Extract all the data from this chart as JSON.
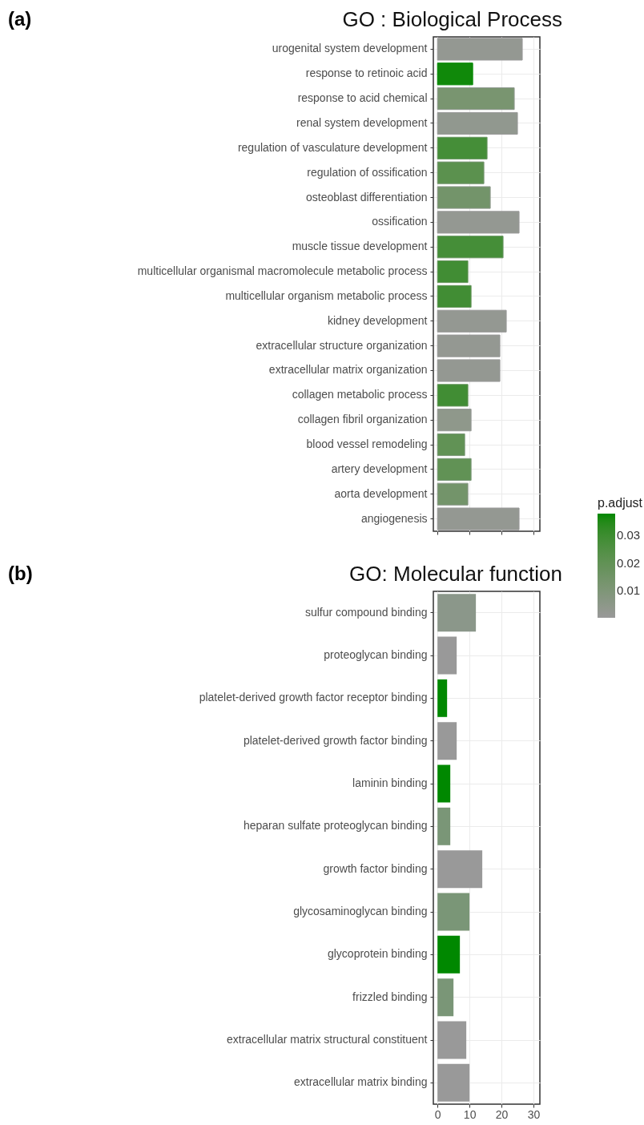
{
  "chart_data": [
    {
      "type": "bar",
      "orientation": "horizontal",
      "title": "GO : Biological Process",
      "annotations": [
        "(a)"
      ],
      "categories": [
        "urogenital system development",
        "response to retinoic acid",
        "response to acid chemical",
        "renal system development",
        "regulation of vasculature development",
        "regulation of ossification",
        "osteoblast differentiation",
        "ossification",
        "muscle tissue development",
        "multicellular organismal macromolecule metabolic process",
        "multicellular organism metabolic process",
        "kidney development",
        "extracellular structure organization",
        "extracellular matrix organization",
        "collagen metabolic process",
        "collagen fibril organization",
        "blood vessel remodeling",
        "artery development",
        "aorta development",
        "angiogenesis"
      ],
      "values": [
        26.5,
        11,
        24,
        25,
        15.5,
        14.5,
        16.5,
        25.5,
        20.5,
        9.5,
        10.5,
        21.5,
        19.5,
        19.5,
        9.5,
        10.5,
        8.5,
        10.5,
        9.5,
        25.5
      ],
      "cvalues": [
        0.002,
        0.037,
        0.012,
        0.003,
        0.028,
        0.022,
        0.014,
        0.002,
        0.028,
        0.029,
        0.029,
        0.002,
        0.002,
        0.002,
        0.029,
        0.004,
        0.02,
        0.02,
        0.014,
        0.002
      ],
      "colors": [
        "#999999",
        "#008800",
        "#8e988e",
        "#999999",
        "#6a9563",
        "#7a9675",
        "#8d978c",
        "#999999",
        "#6a9563",
        "#68955f",
        "#68955f",
        "#999999",
        "#999999",
        "#999999",
        "#68955f",
        "#979997",
        "#7a9677",
        "#7a9677",
        "#8b978a",
        "#999999"
      ],
      "clabel": "p.adjust",
      "clim": [
        0,
        0.038
      ],
      "cticks": [
        0.01,
        0.02,
        0.03
      ],
      "xlim": [
        -1.3,
        32
      ],
      "xticks": [
        0,
        10,
        20,
        30
      ],
      "tick_labels": "y",
      "grid": true
    },
    {
      "type": "bar",
      "orientation": "horizontal",
      "title": "GO: Molecular function",
      "annotations": [
        "(b)"
      ],
      "categories": [
        "sulfur compound binding",
        "proteoglycan binding",
        "platelet-derived growth factor receptor binding",
        "platelet-derived growth factor binding",
        "laminin binding",
        "heparan sulfate proteoglycan binding",
        "growth factor binding",
        "glycosaminoglycan binding",
        "glycoprotein binding",
        "frizzled binding",
        "extracellular matrix structural constituent",
        "extracellular matrix binding"
      ],
      "values": [
        12,
        6,
        3,
        6,
        4,
        4,
        14,
        10,
        7,
        5,
        9,
        10
      ],
      "colors": [
        "#8b978a",
        "#999999",
        "#008800",
        "#999999",
        "#008800",
        "#7a9677",
        "#999999",
        "#7a9677",
        "#008800",
        "#7a9677",
        "#999999",
        "#999999"
      ],
      "xlim": [
        -1.3,
        32
      ],
      "xticks": [
        0,
        10,
        20,
        30
      ],
      "grid": true
    }
  ]
}
